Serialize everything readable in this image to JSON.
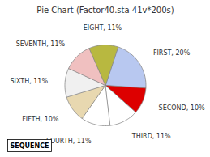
{
  "chart_data": {
    "type": "pie",
    "title": "Pie Chart (Factor40.sta 41v*200s)",
    "categories": [
      "FIRST, 20%",
      "SECOND, 10%",
      "THIRD, 11%",
      "FOURTH, 11%",
      "FIFTH, 10%",
      "SIXTH, 11%",
      "SEVENTH, 11%",
      "EIGHT, 11%"
    ],
    "values": [
      20,
      10,
      11,
      11,
      10,
      11,
      11,
      11
    ],
    "colors": [
      "#b8c8f0",
      "#dd0000",
      "#ffffff",
      "#ffffff",
      "#e8d8b0",
      "#f0f0f0",
      "#f0c0c0",
      "#b8b840"
    ],
    "annotations": [
      "SEQUENCE"
    ]
  }
}
